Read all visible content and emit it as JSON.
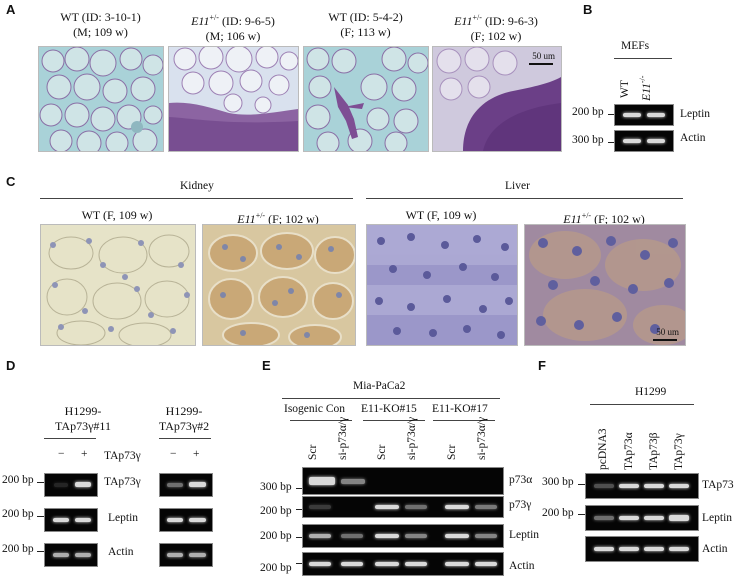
{
  "panels": {
    "A": {
      "letter": "A",
      "captions": [
        {
          "line1": "WT (ID: 3-10-1)",
          "line2": "(M; 109 w)"
        },
        {
          "gene": "E11",
          "sup": "+/-",
          "rest": " (ID: 9-6-5)",
          "line2": "(M; 106 w)"
        },
        {
          "line1": "WT (ID: 5-4-2)",
          "line2": "(F; 113 w)"
        },
        {
          "gene": "E11",
          "sup": "+/-",
          "rest": " (ID: 9-6-3)",
          "line2": "(F; 102 w)"
        }
      ],
      "scale": "50 um"
    },
    "B": {
      "letter": "B",
      "header": "MEFs",
      "lanes": [
        {
          "text": "WT"
        },
        {
          "gene": "E11",
          "sup": "-/-"
        }
      ],
      "markers": [
        "200 bp",
        "300 bp"
      ],
      "bands": [
        "Leptin",
        "Actin"
      ]
    },
    "C": {
      "letter": "C",
      "groups": [
        "Kidney",
        "Liver"
      ],
      "captions": [
        {
          "text": "WT (F, 109 w)"
        },
        {
          "gene": "E11",
          "sup": "+/-",
          "rest": " (F; 102 w)"
        },
        {
          "text": "WT (F, 109 w)"
        },
        {
          "gene": "E11",
          "sup": "+/-",
          "rest": " (F; 102 w)"
        }
      ],
      "scale": "50 um"
    },
    "D": {
      "letter": "D",
      "lines": [
        {
          "l1": "H1299-",
          "l2": "TAp73γ#11"
        },
        {
          "l1": "H1299-",
          "l2": "TAp73γ#2"
        }
      ],
      "minus": "−",
      "plus": "+",
      "treatment": "TAp73γ",
      "markers": [
        "200 bp",
        "200 bp",
        "200 bp"
      ],
      "bands": [
        "TAp73γ",
        "Leptin",
        "Actin"
      ]
    },
    "E": {
      "letter": "E",
      "cell_line": "Mia-PaCa2",
      "groups": [
        "Isogenic Con",
        "E11-KO#15",
        "E11-KO#17"
      ],
      "lanes": [
        "Scr",
        "si-p73α/γ",
        "Scr",
        "si-p73α/γ",
        "Scr",
        "si-p73α/γ"
      ],
      "markers": [
        "300 bp",
        "200 bp",
        "200 bp",
        "200 bp"
      ],
      "bands": [
        "p73α",
        "p73γ",
        "Leptin",
        "Actin"
      ]
    },
    "F": {
      "letter": "F",
      "cell_line": "H1299",
      "lanes": [
        "pcDNA3",
        "TAp73α",
        "TAp73β",
        "TAp73γ"
      ],
      "markers": [
        "300 bp",
        "200 bp"
      ],
      "bands": [
        "TAp73",
        "Leptin",
        "Actin"
      ]
    }
  },
  "colors": {
    "he_background": "#a9d2d8",
    "he_stain": "#7e4e94",
    "ihc_background": "#e6e3c8",
    "ihc_positive": "#c9a877",
    "liver_stain": "#8a86c0",
    "gel": "#050505",
    "band": "#d9d9d9"
  }
}
